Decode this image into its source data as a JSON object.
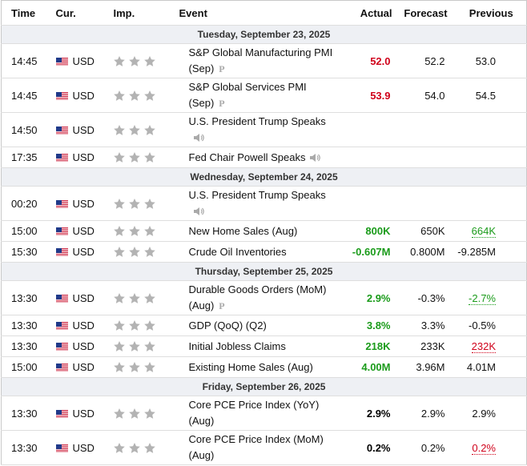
{
  "header": [
    "Time",
    "Cur.",
    "Imp.",
    "Event",
    "Actual",
    "Forecast",
    "Previous"
  ],
  "days": [
    {
      "date": "Tuesday, September 23, 2025",
      "rows": [
        {
          "time": "14:45",
          "currency": "USD",
          "event": "S&P Global Manufacturing PMI (Sep)",
          "mark": "P",
          "actual": "52.0",
          "actual_color": "#d0021b",
          "forecast": "52.2",
          "previous": "53.0"
        },
        {
          "time": "14:45",
          "currency": "USD",
          "event": "S&P Global Services PMI (Sep)",
          "mark": "P",
          "actual": "53.9",
          "actual_color": "#d0021b",
          "forecast": "54.0",
          "previous": "54.5"
        },
        {
          "time": "14:50",
          "currency": "USD",
          "event": "U.S. President Trump Speaks",
          "audio": true
        },
        {
          "time": "17:35",
          "currency": "USD",
          "event": "Fed Chair Powell Speaks",
          "audio": true
        }
      ]
    },
    {
      "date": "Wednesday, September 24, 2025",
      "rows": [
        {
          "time": "00:20",
          "currency": "USD",
          "event": "U.S. President Trump Speaks",
          "audio": true
        },
        {
          "time": "15:00",
          "currency": "USD",
          "event": "New Home Sales (Aug)",
          "actual": "800K",
          "actual_color": "#1a9b1a",
          "forecast": "650K",
          "previous": "664K",
          "previous_color": "#1a9b1a"
        },
        {
          "time": "15:30",
          "currency": "USD",
          "event": "Crude Oil Inventories",
          "actual": "-0.607M",
          "actual_color": "#1a9b1a",
          "forecast": "0.800M",
          "previous": "-9.285M"
        }
      ]
    },
    {
      "date": "Thursday, September 25, 2025",
      "rows": [
        {
          "time": "13:30",
          "currency": "USD",
          "event": "Durable Goods Orders (MoM) (Aug)",
          "mark": "P",
          "actual": "2.9%",
          "actual_color": "#1a9b1a",
          "forecast": "-0.3%",
          "previous": "-2.7%",
          "previous_color": "#1a9b1a"
        },
        {
          "time": "13:30",
          "currency": "USD",
          "event": "GDP (QoQ) (Q2)",
          "actual": "3.8%",
          "actual_color": "#1a9b1a",
          "forecast": "3.3%",
          "previous": "-0.5%"
        },
        {
          "time": "13:30",
          "currency": "USD",
          "event": "Initial Jobless Claims",
          "actual": "218K",
          "actual_color": "#1a9b1a",
          "forecast": "233K",
          "previous": "232K",
          "previous_color": "#d0021b"
        },
        {
          "time": "15:00",
          "currency": "USD",
          "event": "Existing Home Sales (Aug)",
          "actual": "4.00M",
          "actual_color": "#1a9b1a",
          "forecast": "3.96M",
          "previous": "4.01M"
        }
      ]
    },
    {
      "date": "Friday, September 26, 2025",
      "rows": [
        {
          "time": "13:30",
          "currency": "USD",
          "event": "Core PCE Price Index (YoY) (Aug)",
          "actual": "2.9%",
          "actual_color": "#000000",
          "forecast": "2.9%",
          "previous": "2.9%"
        },
        {
          "time": "13:30",
          "currency": "USD",
          "event": "Core PCE Price Index (MoM) (Aug)",
          "actual": "0.2%",
          "actual_color": "#000000",
          "forecast": "0.2%",
          "previous": "0.2%",
          "previous_color": "#d0021b"
        }
      ]
    }
  ]
}
